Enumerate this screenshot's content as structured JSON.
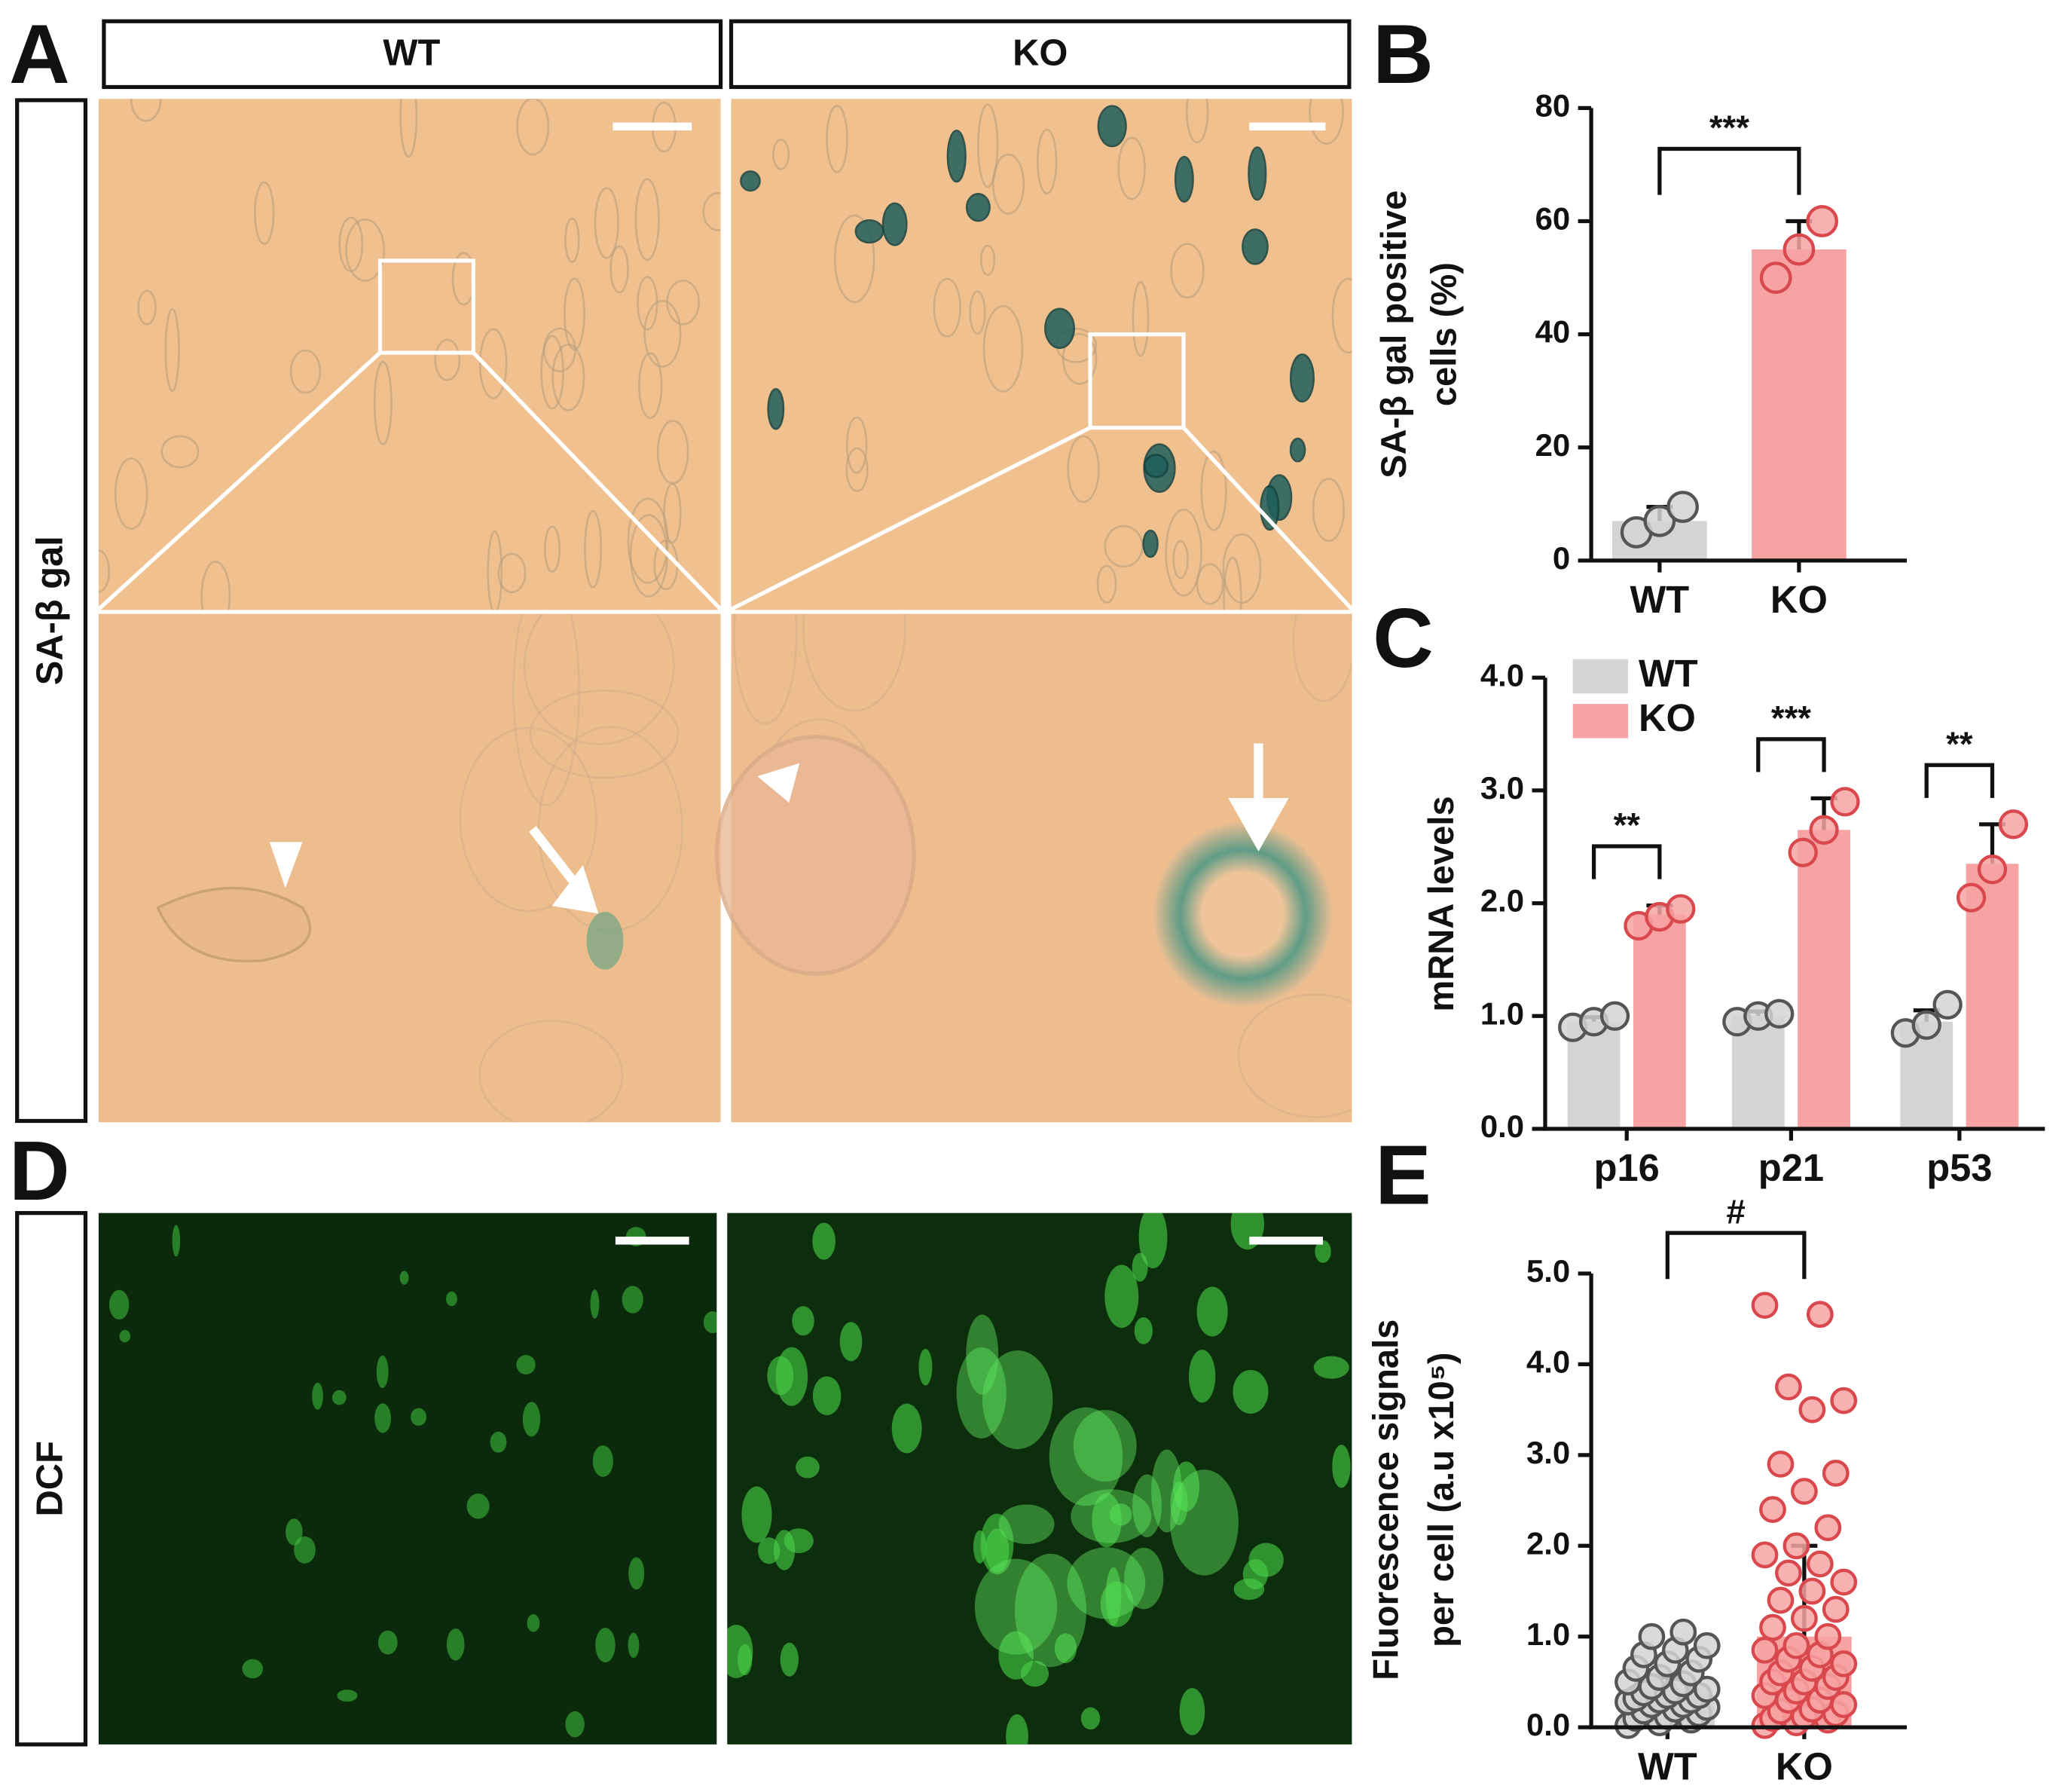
{
  "panel_labels": [
    "A",
    "B",
    "C",
    "D",
    "E"
  ],
  "column_headers": [
    "WT",
    "KO"
  ],
  "row_labels": [
    "SA-β gal",
    "DCF"
  ],
  "chart_data": [
    {
      "type": "bar",
      "categories": [
        "WT",
        "KO"
      ],
      "values": [
        7,
        55
      ],
      "errors": [
        2.5,
        5
      ],
      "points": [
        [
          5,
          7,
          9.5
        ],
        [
          50,
          55,
          60
        ]
      ],
      "colors": [
        "#d4d4d4",
        "#f7a3a3"
      ],
      "point_colors": [
        "#555555",
        "#d9484c"
      ],
      "ylabel": [
        "SA-β gal positive",
        "cells (%)"
      ],
      "ylim": [
        0,
        80
      ],
      "yticks": [
        0,
        20,
        40,
        60,
        80
      ],
      "significance": "***"
    },
    {
      "type": "grouped-bar",
      "categories": [
        "p16",
        "p21",
        "p53"
      ],
      "series": [
        {
          "name": "WT",
          "color": "#d4d4d4",
          "point_color": "#555555",
          "values": [
            0.95,
            1.0,
            0.95
          ],
          "errors": [
            0.04,
            0.04,
            0.1
          ],
          "points": [
            [
              0.9,
              0.95,
              1.0
            ],
            [
              0.95,
              1.0,
              1.02
            ],
            [
              0.85,
              0.92,
              1.1
            ]
          ]
        },
        {
          "name": "KO",
          "color": "#f7a3a3",
          "point_color": "#d9484c",
          "values": [
            1.9,
            2.65,
            2.35
          ],
          "errors": [
            0.08,
            0.28,
            0.35
          ],
          "points": [
            [
              1.8,
              1.88,
              1.95
            ],
            [
              2.45,
              2.65,
              2.9
            ],
            [
              2.05,
              2.3,
              2.7
            ]
          ]
        }
      ],
      "ylabel": [
        "mRNA levels"
      ],
      "legend": "upper left",
      "ylim": [
        0,
        4
      ],
      "yticks": [
        {
          "value": 0,
          "label": "0.0"
        },
        {
          "value": 1,
          "label": "1.0"
        },
        {
          "value": 2,
          "label": "2.0"
        },
        {
          "value": 3,
          "label": "3.0"
        },
        {
          "value": 4,
          "label": "4.0"
        }
      ],
      "significance": [
        "**",
        "***",
        "**"
      ]
    },
    {
      "type": "bar",
      "categories": [
        "WT",
        "KO"
      ],
      "values": [
        0.3,
        1.0
      ],
      "errors": [
        0.25,
        1.0
      ],
      "points": [
        [
          0.02,
          0.05,
          0.08,
          0.1,
          0.12,
          0.15,
          0.18,
          0.2,
          0.22,
          0.25,
          0.25,
          0.28,
          0.3,
          0.3,
          0.32,
          0.35,
          0.35,
          0.38,
          0.4,
          0.42,
          0.45,
          0.48,
          0.5,
          0.55,
          0.6,
          0.65,
          0.7,
          0.75,
          0.8,
          0.85,
          0.9,
          1.0,
          1.05
        ],
        [
          0.02,
          0.05,
          0.08,
          0.1,
          0.12,
          0.15,
          0.18,
          0.2,
          0.25,
          0.3,
          0.3,
          0.35,
          0.4,
          0.45,
          0.5,
          0.5,
          0.55,
          0.6,
          0.65,
          0.7,
          0.75,
          0.8,
          0.85,
          0.9,
          1.0,
          1.1,
          1.2,
          1.3,
          1.4,
          1.5,
          1.6,
          1.7,
          1.8,
          1.9,
          2.0,
          2.2,
          2.4,
          2.6,
          2.8,
          2.9,
          3.5,
          3.6,
          3.75,
          4.55,
          4.65
        ]
      ],
      "colors": [
        "#d4d4d4",
        "#f7a3a3"
      ],
      "point_colors": [
        "#555555",
        "#d9484c"
      ],
      "ylabel": [
        "Fluorescence signals",
        "per cell (a.u x10⁵)"
      ],
      "ylim": [
        0,
        5
      ],
      "yticks": [
        {
          "value": 0,
          "label": "0.0"
        },
        {
          "value": 1,
          "label": "1.0"
        },
        {
          "value": 2,
          "label": "2.0"
        },
        {
          "value": 3,
          "label": "3.0"
        },
        {
          "value": 4,
          "label": "4.0"
        },
        {
          "value": 5,
          "label": "5.0"
        }
      ],
      "significance": "#"
    }
  ]
}
